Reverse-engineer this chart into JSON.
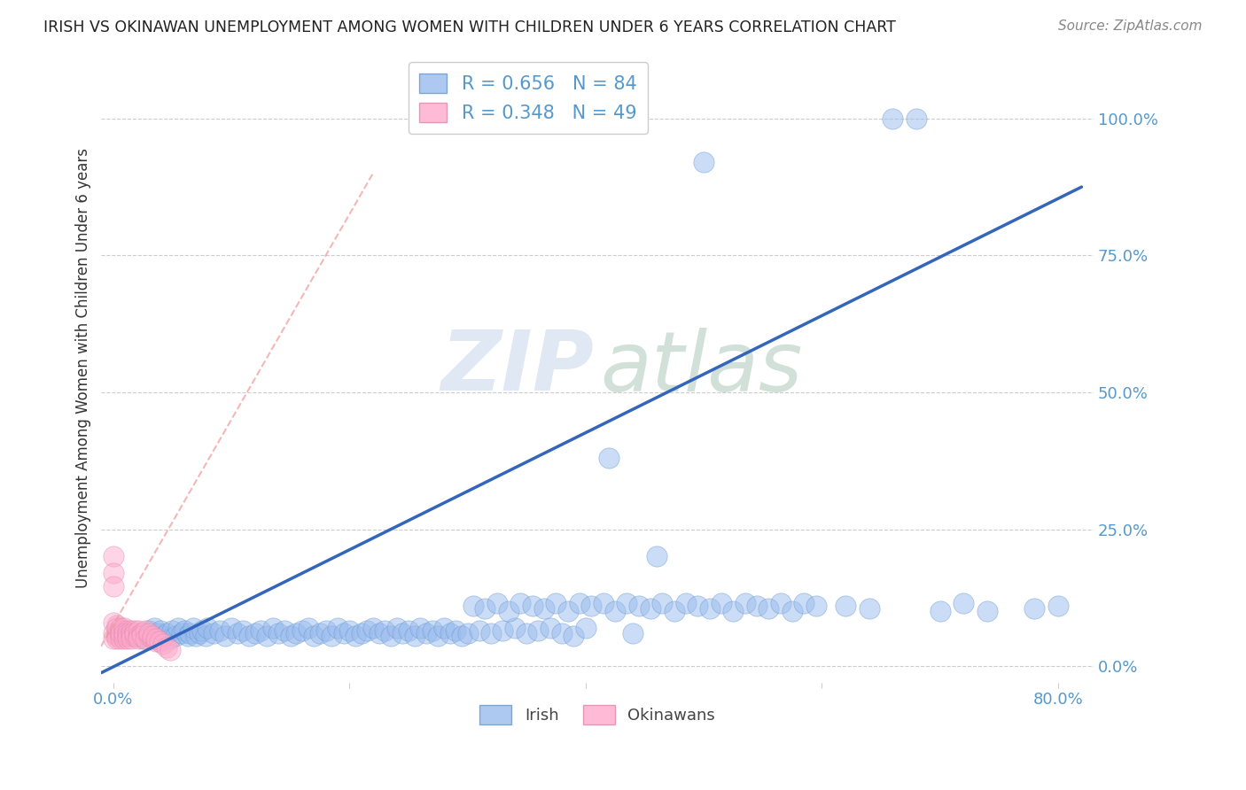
{
  "title": "IRISH VS OKINAWAN UNEMPLOYMENT AMONG WOMEN WITH CHILDREN UNDER 6 YEARS CORRELATION CHART",
  "source": "Source: ZipAtlas.com",
  "ylabel": "Unemployment Among Women with Children Under 6 years",
  "xlim_min": -0.01,
  "xlim_max": 0.83,
  "ylim_min": -0.03,
  "ylim_max": 1.12,
  "irish_R": 0.656,
  "irish_N": 84,
  "okinawan_R": 0.348,
  "okinawan_N": 49,
  "irish_marker_color": "#99BBEE",
  "irish_edge_color": "#6699CC",
  "okinawan_marker_color": "#FFAACC",
  "okinawan_edge_color": "#DD88AA",
  "irish_line_color": "#3366BB",
  "okinawan_line_color": "#EE9999",
  "background_color": "#FFFFFF",
  "grid_color": "#CCCCCC",
  "tick_color": "#5599CC",
  "irish_scatter_x": [
    0.02,
    0.025,
    0.028,
    0.03,
    0.033,
    0.035,
    0.038,
    0.04,
    0.043,
    0.045,
    0.048,
    0.05,
    0.053,
    0.055,
    0.058,
    0.06,
    0.063,
    0.065,
    0.068,
    0.07,
    0.073,
    0.075,
    0.078,
    0.08,
    0.085,
    0.09,
    0.095,
    0.1,
    0.105,
    0.11,
    0.115,
    0.12,
    0.125,
    0.13,
    0.135,
    0.14,
    0.145,
    0.15,
    0.155,
    0.16,
    0.165,
    0.17,
    0.175,
    0.18,
    0.185,
    0.19,
    0.195,
    0.2,
    0.205,
    0.21,
    0.215,
    0.22,
    0.225,
    0.23,
    0.235,
    0.24,
    0.245,
    0.25,
    0.255,
    0.26,
    0.265,
    0.27,
    0.275,
    0.28,
    0.285,
    0.29,
    0.295,
    0.3,
    0.31,
    0.32,
    0.33,
    0.34,
    0.35,
    0.36,
    0.37,
    0.38,
    0.39,
    0.4,
    0.42,
    0.44,
    0.46,
    0.5,
    0.66,
    0.68
  ],
  "irish_scatter_y": [
    0.055,
    0.05,
    0.06,
    0.065,
    0.055,
    0.07,
    0.06,
    0.065,
    0.055,
    0.06,
    0.05,
    0.065,
    0.055,
    0.07,
    0.06,
    0.065,
    0.055,
    0.06,
    0.07,
    0.055,
    0.06,
    0.065,
    0.055,
    0.07,
    0.06,
    0.065,
    0.055,
    0.07,
    0.06,
    0.065,
    0.055,
    0.06,
    0.065,
    0.055,
    0.07,
    0.06,
    0.065,
    0.055,
    0.06,
    0.065,
    0.07,
    0.055,
    0.06,
    0.065,
    0.055,
    0.07,
    0.06,
    0.065,
    0.055,
    0.06,
    0.065,
    0.07,
    0.06,
    0.065,
    0.055,
    0.07,
    0.06,
    0.065,
    0.055,
    0.07,
    0.06,
    0.065,
    0.055,
    0.07,
    0.06,
    0.065,
    0.055,
    0.06,
    0.065,
    0.06,
    0.065,
    0.07,
    0.06,
    0.065,
    0.07,
    0.06,
    0.055,
    0.07,
    0.38,
    0.06,
    0.2,
    0.92,
    1.0,
    1.0
  ],
  "irish_scatter_x2": [
    0.305,
    0.315,
    0.325,
    0.335,
    0.345,
    0.355,
    0.365,
    0.375,
    0.385,
    0.395,
    0.405,
    0.415,
    0.425,
    0.435,
    0.445,
    0.455,
    0.465,
    0.475,
    0.485,
    0.495,
    0.505,
    0.515,
    0.525,
    0.535,
    0.545,
    0.555,
    0.565,
    0.575,
    0.585,
    0.595,
    0.62,
    0.64,
    0.7,
    0.72,
    0.74,
    0.78,
    0.8
  ],
  "irish_scatter_y2": [
    0.11,
    0.105,
    0.115,
    0.1,
    0.115,
    0.11,
    0.105,
    0.115,
    0.1,
    0.115,
    0.11,
    0.115,
    0.1,
    0.115,
    0.11,
    0.105,
    0.115,
    0.1,
    0.115,
    0.11,
    0.105,
    0.115,
    0.1,
    0.115,
    0.11,
    0.105,
    0.115,
    0.1,
    0.115,
    0.11,
    0.11,
    0.105,
    0.1,
    0.115,
    0.1,
    0.105,
    0.11
  ],
  "okinawan_scatter_x": [
    0.0,
    0.0,
    0.0,
    0.0,
    0.0,
    0.0,
    0.003,
    0.003,
    0.003,
    0.003,
    0.003,
    0.006,
    0.006,
    0.006,
    0.006,
    0.006,
    0.009,
    0.009,
    0.009,
    0.009,
    0.009,
    0.012,
    0.012,
    0.012,
    0.012,
    0.015,
    0.015,
    0.015,
    0.015,
    0.018,
    0.018,
    0.018,
    0.021,
    0.021,
    0.021,
    0.024,
    0.024,
    0.027,
    0.027,
    0.03,
    0.03,
    0.033,
    0.033,
    0.036,
    0.036,
    0.039,
    0.042,
    0.045,
    0.048
  ],
  "okinawan_scatter_y": [
    0.2,
    0.17,
    0.145,
    0.08,
    0.06,
    0.05,
    0.075,
    0.06,
    0.055,
    0.07,
    0.05,
    0.065,
    0.055,
    0.07,
    0.05,
    0.06,
    0.065,
    0.055,
    0.07,
    0.05,
    0.06,
    0.065,
    0.055,
    0.06,
    0.05,
    0.065,
    0.055,
    0.06,
    0.05,
    0.065,
    0.055,
    0.06,
    0.065,
    0.055,
    0.05,
    0.06,
    0.055,
    0.065,
    0.05,
    0.055,
    0.06,
    0.05,
    0.055,
    0.045,
    0.05,
    0.045,
    0.04,
    0.035,
    0.03
  ],
  "irish_regline": [
    -0.01,
    0.82,
    -0.012,
    0.875
  ],
  "okinawan_regline": [
    -0.06,
    0.22,
    -0.15,
    0.9
  ],
  "ytick_positions": [
    0.0,
    0.25,
    0.5,
    0.75,
    1.0
  ],
  "ytick_labels": [
    "0.0%",
    "25.0%",
    "50.0%",
    "75.0%",
    "100.0%"
  ],
  "xtick_positions": [
    0.0,
    0.2,
    0.4,
    0.6,
    0.8
  ],
  "xtick_labels": [
    "0.0%",
    "",
    "",
    "",
    "80.0%"
  ]
}
